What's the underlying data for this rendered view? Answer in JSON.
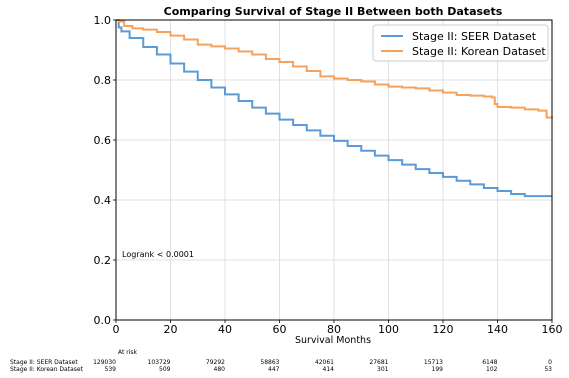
{
  "chart_data": {
    "type": "line",
    "title": "Comparing Survival of Stage II Between both Datasets",
    "xlabel": "Survival Months",
    "ylabel": "",
    "xlim": [
      0,
      160
    ],
    "ylim": [
      0.0,
      1.0
    ],
    "xticks": [
      "0",
      "20",
      "40",
      "60",
      "80",
      "100",
      "120",
      "140",
      "160"
    ],
    "yticks": [
      "0.0",
      "0.2",
      "0.4",
      "0.6",
      "0.8",
      "1.0"
    ],
    "grid": true,
    "legend_position": "top-right",
    "step": true,
    "series": [
      {
        "name": "Stage II: SEER Dataset",
        "color": "#5b9bd5",
        "x": [
          0,
          1,
          2,
          5,
          10,
          15,
          20,
          25,
          30,
          35,
          40,
          45,
          50,
          55,
          60,
          65,
          70,
          75,
          80,
          85,
          90,
          95,
          100,
          105,
          110,
          115,
          120,
          125,
          130,
          135,
          140,
          145,
          150,
          155,
          160
        ],
        "y": [
          1.0,
          0.975,
          0.962,
          0.94,
          0.91,
          0.885,
          0.855,
          0.828,
          0.8,
          0.775,
          0.752,
          0.73,
          0.708,
          0.688,
          0.668,
          0.65,
          0.632,
          0.614,
          0.597,
          0.58,
          0.564,
          0.548,
          0.533,
          0.518,
          0.503,
          0.49,
          0.477,
          0.464,
          0.452,
          0.44,
          0.43,
          0.42,
          0.413,
          0.413,
          0.413
        ]
      },
      {
        "name": "Stage II: Korean Dataset",
        "color": "#f5a25c",
        "x": [
          0,
          1,
          3,
          6,
          10,
          15,
          20,
          25,
          30,
          35,
          40,
          45,
          50,
          55,
          60,
          65,
          70,
          75,
          80,
          85,
          90,
          95,
          100,
          105,
          110,
          115,
          120,
          125,
          130,
          135,
          138,
          139,
          140,
          145,
          150,
          155,
          158,
          160
        ],
        "y": [
          1.0,
          0.995,
          0.98,
          0.972,
          0.968,
          0.96,
          0.948,
          0.935,
          0.918,
          0.912,
          0.905,
          0.895,
          0.885,
          0.87,
          0.86,
          0.845,
          0.83,
          0.812,
          0.805,
          0.8,
          0.795,
          0.785,
          0.778,
          0.775,
          0.772,
          0.765,
          0.758,
          0.75,
          0.748,
          0.745,
          0.742,
          0.72,
          0.71,
          0.708,
          0.702,
          0.698,
          0.675,
          0.672
        ]
      }
    ],
    "annotation": "Logrank  < 0.0001",
    "at_risk": {
      "header": "At risk",
      "rows": [
        {
          "label": "Stage II: SEER Dataset",
          "values": [
            "129030",
            "103729",
            "79292",
            "58863",
            "42061",
            "27681",
            "15713",
            "6148",
            "0"
          ]
        },
        {
          "label": "Stage II: Korean Dataset",
          "values": [
            "539",
            "509",
            "480",
            "447",
            "414",
            "301",
            "199",
            "102",
            "53"
          ]
        }
      ]
    }
  }
}
